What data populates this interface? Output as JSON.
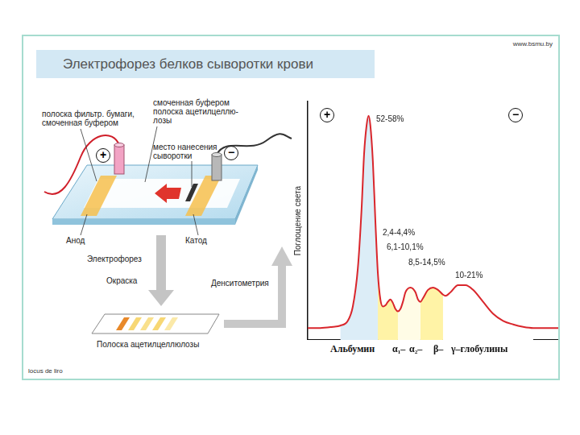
{
  "header": {
    "title": "Электрофорез белков сыворотки крови",
    "site": "www.bsmu.by",
    "credit": "locus de liro"
  },
  "apparatus": {
    "paper_label": [
      "полоска фильтр. бумаги,",
      "смоченная буфером"
    ],
    "strip_label": [
      "смоченная буфером",
      "полоска ацетилцеллю-",
      "лозы"
    ],
    "application_label": [
      "место нанесения",
      "сыворотки"
    ],
    "anode": "Анод",
    "cathode": "Катод",
    "anode_sign": "+",
    "cathode_sign": "−"
  },
  "flow": {
    "steps": [
      "Электрофорез",
      "Окраска"
    ],
    "densitometry": "Денситометрия"
  },
  "result_strip": {
    "label": "Полоска ацетилцеллюлозы",
    "band_colors": [
      "#e8892a",
      "#f7d774",
      "#f9e08c",
      "#f7d774",
      "#fbe9a8"
    ]
  },
  "chart_data": {
    "type": "line",
    "y_label": "Поглощение света",
    "anode_sign": "+",
    "cathode_sign": "−",
    "x": [
      0,
      5,
      10,
      13,
      16,
      18,
      20,
      21.5,
      22.5,
      23.5,
      24.3,
      25,
      26,
      27,
      28,
      29,
      30,
      31,
      32,
      33,
      34,
      35,
      36,
      37,
      38,
      39,
      41,
      43,
      44,
      45,
      46,
      48,
      50,
      52,
      54,
      55,
      57,
      60,
      63,
      66,
      70,
      74,
      78,
      82,
      86,
      90,
      95,
      100
    ],
    "values": [
      5,
      5,
      5.5,
      6,
      8,
      14,
      30,
      55,
      78,
      90,
      94,
      90,
      75,
      50,
      28,
      17,
      14,
      14.5,
      16,
      17,
      15.5,
      13,
      12,
      13,
      16,
      20,
      22,
      20,
      17,
      16,
      17.5,
      21,
      22,
      21,
      19,
      18.5,
      20,
      23,
      23,
      21,
      16,
      11,
      8,
      6.5,
      5.5,
      5,
      5,
      5
    ],
    "color": "#d9262c",
    "xlim": [
      0,
      100
    ],
    "ylim": [
      0,
      100
    ],
    "tick_labels": false,
    "grid": false,
    "fractions": [
      {
        "name": "Альбумин",
        "label": "52-58%",
        "from": 13,
        "to": 28,
        "color": "#dcedf7"
      },
      {
        "name": "α₁–",
        "label": "2,4-4,4%",
        "from": 28,
        "to": 36,
        "color": "#fff3a6"
      },
      {
        "name": "α₂–",
        "label": "6,1-10,1%",
        "from": 36,
        "to": 45,
        "color": "#fffce6"
      },
      {
        "name": "β–",
        "label": "8,5-14,5%",
        "from": 45,
        "to": 54,
        "color": "#fff3a6"
      },
      {
        "name": "γ–глобулины",
        "label": "10-21%",
        "from": 54,
        "to": 90,
        "color": "#ffffff"
      }
    ]
  }
}
